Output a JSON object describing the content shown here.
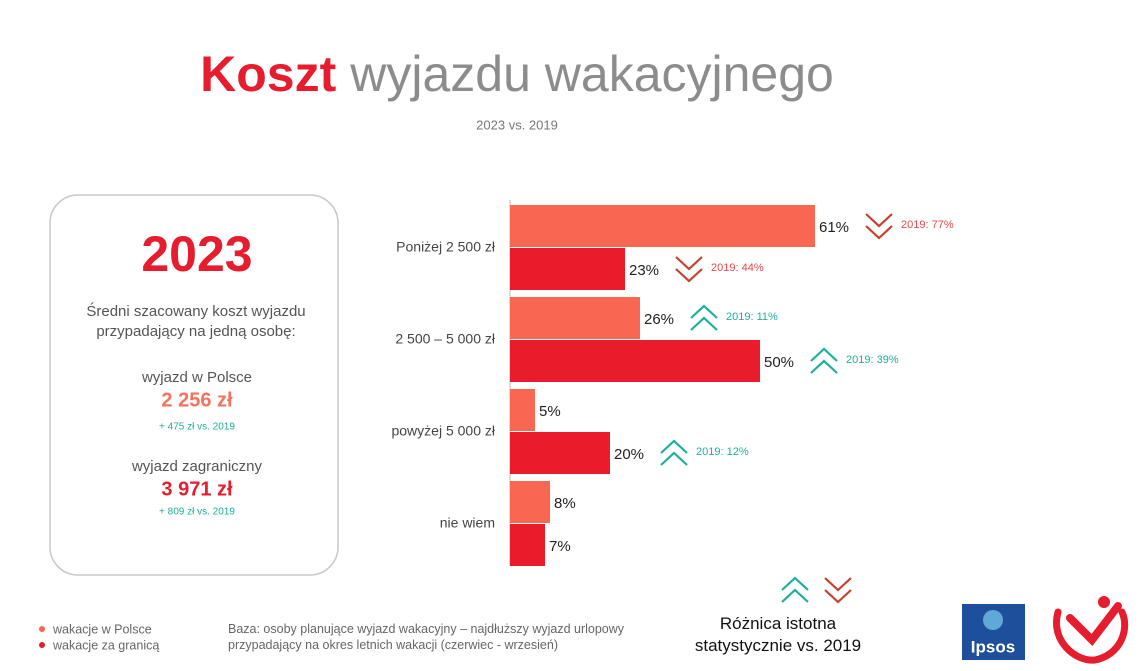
{
  "title_bold": "Koszt",
  "title_rest": "wyjazdu wakacyjnego",
  "subtitle": "2023 vs. 2019",
  "summary": {
    "year": "2023",
    "description": "Średni szacowany koszt wyjazdu przypadający na jedną osobę:",
    "items": [
      {
        "label": "wyjazd w Polsce",
        "value": "2 256 zł",
        "change": "+ 475 zł vs. 2019",
        "color": "#f4735f"
      },
      {
        "label": "wyjazd zagraniczny",
        "value": "3 971 zł",
        "change": "+ 809 zł vs. 2019",
        "color": "#e51d2e"
      }
    ]
  },
  "chart_data": {
    "type": "hbar",
    "categories": [
      "Poniżej 2 500 zł",
      "2 500 – 5 000 zł",
      "powyżej 5 000 zł",
      "nie wiem"
    ],
    "xlim": [
      0,
      100
    ],
    "up_color": "#1cb09c",
    "down_color": "#c8402e",
    "series": [
      {
        "name": "wakacje w Polsce",
        "color": "#f96651",
        "values": [
          61,
          26,
          5,
          8
        ],
        "value_labels": [
          "61%",
          "26%",
          "5%",
          "8%"
        ],
        "comparison_labels": [
          "2019: 77%",
          "2019: 11%",
          null,
          null
        ],
        "comparison_directions": [
          "down",
          "up",
          null,
          null
        ]
      },
      {
        "name": "wakacje za granicą",
        "color": "#ea1c2c",
        "values": [
          23,
          50,
          20,
          7
        ],
        "value_labels": [
          "23%",
          "50%",
          "20%",
          "7%"
        ],
        "comparison_labels": [
          "2019: 44%",
          "2019: 39%",
          "2019: 12%",
          null
        ],
        "comparison_directions": [
          "down",
          "up",
          "up",
          null
        ]
      }
    ]
  },
  "footnote": "Baza: osoby planujące wyjazd wakacyjny – najdłuższy wyjazd urlopowy przypadający na okres letnich wakacji (czerwiec - wrzesień)",
  "significance_label": "Różnica istotna statystycznie vs. 2019",
  "logo_text": "Ipsos"
}
